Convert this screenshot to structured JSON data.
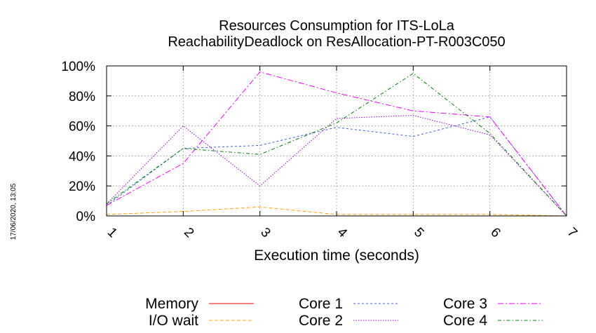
{
  "chart_data": {
    "type": "line",
    "title": [
      "Resources Consumption for ITS-LoLa",
      "ReachabilityDeadlock on ResAllocation-PT-R003C050"
    ],
    "xlabel": "Execution time (seconds)",
    "ylabel": "",
    "x": [
      1,
      2,
      3,
      4,
      5,
      6,
      7
    ],
    "x_tick_labels": [
      "1",
      "2",
      "3",
      "4",
      "5",
      "6",
      "7"
    ],
    "y_tick_labels": [
      "0%",
      "20%",
      "40%",
      "60%",
      "80%",
      "100%"
    ],
    "xlim": [
      1,
      7
    ],
    "ylim": [
      0,
      100
    ],
    "grid": true,
    "legend_position": "bottom",
    "series": [
      {
        "name": "Memory",
        "color": "#ff0000",
        "dash": "",
        "values": [
          0,
          0,
          0,
          0,
          0,
          0,
          0
        ]
      },
      {
        "name": "I/O wait",
        "color": "#ffa500",
        "dash": "5 3",
        "values": [
          1,
          3,
          6,
          1,
          1,
          1,
          0
        ]
      },
      {
        "name": "Core 1",
        "color": "#4060e0",
        "dash": "3 3",
        "values": [
          7,
          45,
          47,
          59,
          53,
          66,
          0
        ]
      },
      {
        "name": "Core 2",
        "color": "#9400d3",
        "dash": "1.5 2",
        "values": [
          8,
          60,
          20,
          65,
          67,
          54,
          0
        ]
      },
      {
        "name": "Core 3",
        "color": "#ff00ff",
        "dash": "8 3 2 3",
        "values": [
          7,
          35,
          96,
          82,
          70,
          66,
          0
        ]
      },
      {
        "name": "Core 4",
        "color": "#008000",
        "dash": "5 3 1.5 3",
        "values": [
          8,
          45,
          41,
          62,
          95,
          55,
          0
        ]
      }
    ]
  },
  "timestamp": "17/06/2020, 13:05"
}
